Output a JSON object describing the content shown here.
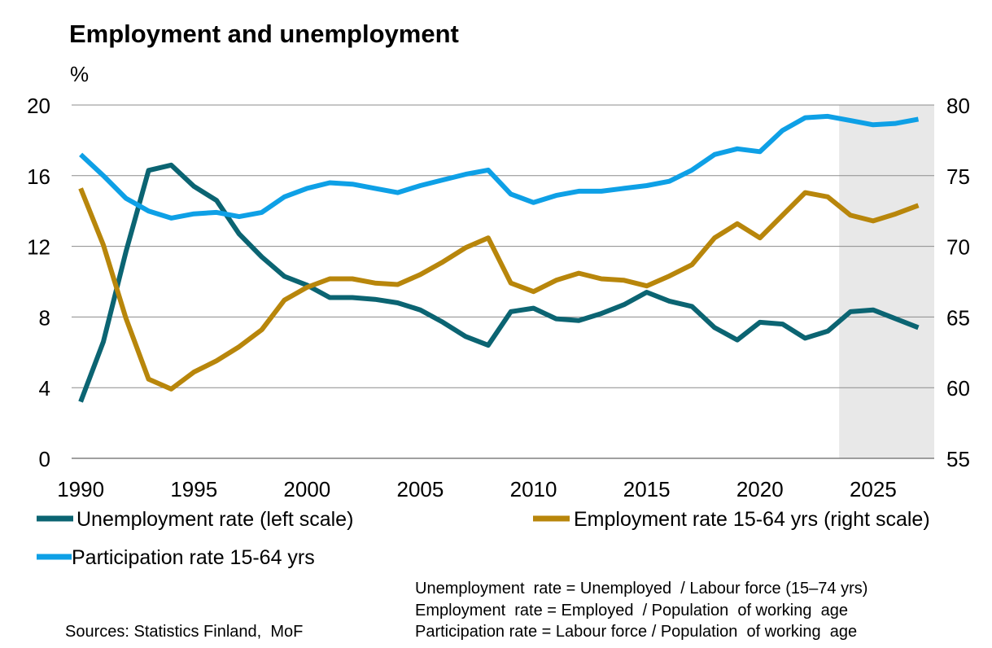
{
  "chart_data": {
    "type": "line",
    "title": "Employment and unemployment",
    "ylabel_left": "%",
    "x_ticks": [
      "1990",
      "1995",
      "2000",
      "2005",
      "2010",
      "2015",
      "2020",
      "2025"
    ],
    "y_left": {
      "range": [
        0,
        20
      ],
      "ticks": [
        "0",
        "4",
        "8",
        "12",
        "16",
        "20"
      ]
    },
    "y_right": {
      "range": [
        55,
        80
      ],
      "ticks": [
        "55",
        "60",
        "65",
        "70",
        "75",
        "80"
      ]
    },
    "x_range": [
      1989.6,
      2027.7
    ],
    "grid": true,
    "forecast_shading": {
      "from": 2023.5,
      "to": 2027.7,
      "color": "#e8e8e8"
    },
    "x": [
      1990,
      1991,
      1992,
      1993,
      1994,
      1995,
      1996,
      1997,
      1998,
      1999,
      2000,
      2001,
      2002,
      2003,
      2004,
      2005,
      2006,
      2007,
      2008,
      2009,
      2010,
      2011,
      2012,
      2013,
      2014,
      2015,
      2016,
      2017,
      2018,
      2019,
      2020,
      2021,
      2022,
      2023,
      2024,
      2025,
      2026,
      2027
    ],
    "series": [
      {
        "name": "Unemployment rate (left scale)",
        "axis": "left",
        "color": "#0b6472",
        "values": [
          3.2,
          6.6,
          11.7,
          16.3,
          16.6,
          15.4,
          14.6,
          12.7,
          11.4,
          10.3,
          9.8,
          9.1,
          9.1,
          9.0,
          8.8,
          8.4,
          7.7,
          6.9,
          6.4,
          8.3,
          8.5,
          7.9,
          7.8,
          8.2,
          8.7,
          9.4,
          8.9,
          8.6,
          7.4,
          6.7,
          7.7,
          7.6,
          6.8,
          7.2,
          8.3,
          8.4,
          7.9,
          7.4
        ]
      },
      {
        "name": "Employment rate 15-64 yrs (right scale)",
        "axis": "right",
        "color": "#b8860b",
        "values": [
          74.1,
          70.1,
          64.9,
          60.6,
          59.9,
          61.1,
          61.9,
          62.9,
          64.1,
          66.2,
          67.1,
          67.7,
          67.7,
          67.4,
          67.3,
          68.0,
          68.9,
          69.9,
          70.6,
          67.4,
          66.8,
          67.6,
          68.1,
          67.7,
          67.6,
          67.2,
          67.9,
          68.7,
          70.6,
          71.6,
          70.6,
          72.2,
          73.8,
          73.5,
          72.2,
          71.8,
          72.3,
          72.9
        ]
      },
      {
        "name": "Participation rate 15-64 yrs",
        "axis": "right",
        "color": "#0ea0e6",
        "values": [
          76.5,
          75.0,
          73.4,
          72.5,
          72.0,
          72.3,
          72.4,
          72.1,
          72.4,
          73.5,
          74.1,
          74.5,
          74.4,
          74.1,
          73.8,
          74.3,
          74.7,
          75.1,
          75.4,
          73.7,
          73.1,
          73.6,
          73.9,
          73.9,
          74.1,
          74.3,
          74.6,
          75.4,
          76.5,
          76.9,
          76.7,
          78.2,
          79.1,
          79.2,
          78.9,
          78.6,
          78.7,
          79.0
        ]
      }
    ],
    "legend": [
      "Unemployment rate (left scale)",
      "Employment rate 15-64 yrs (right scale)",
      "Participation rate 15-64 yrs"
    ],
    "notes": [
      "Unemployment  rate = Unemployed  / Labour force (15–74 yrs)",
      "Employment  rate = Employed  / Population  of working  age",
      "Participation rate = Labour force / Population  of working  age"
    ],
    "source": "Sources: Statistics Finland,  MoF"
  }
}
